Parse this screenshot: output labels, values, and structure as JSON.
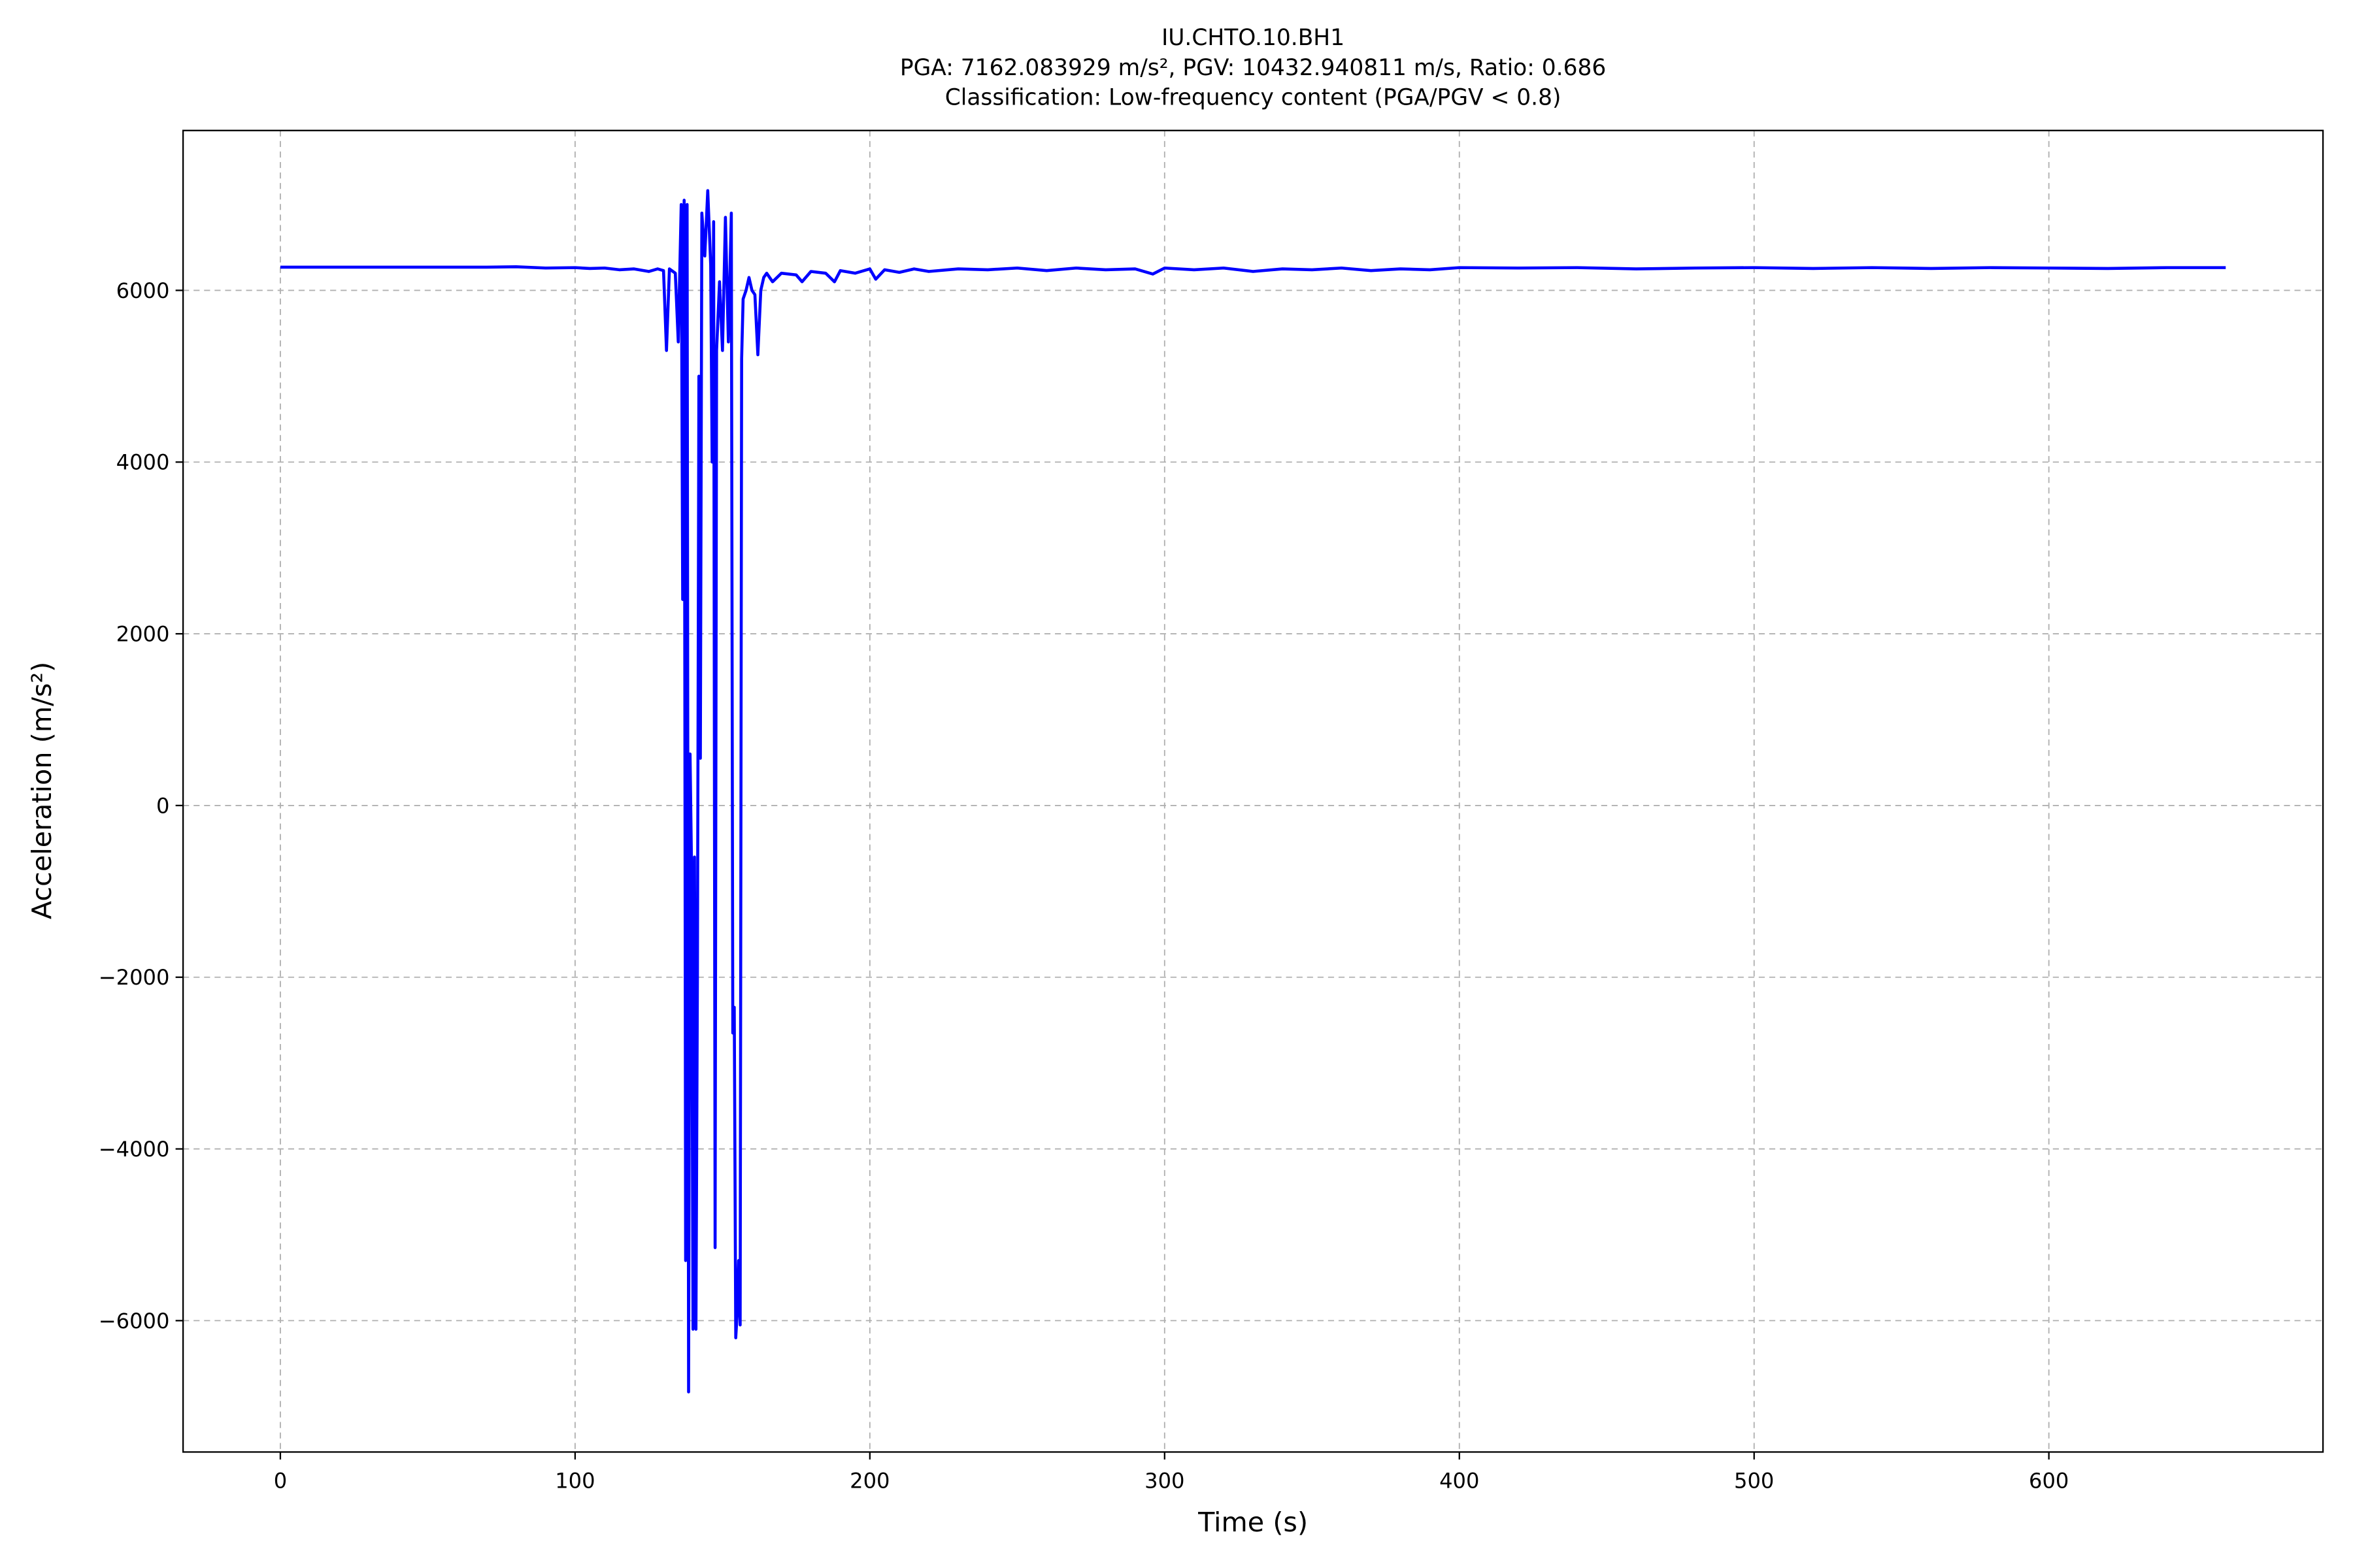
{
  "chart_data": {
    "type": "line",
    "title": [
      "IU.CHTO.10.BH1",
      "PGA: 7162.083929 m/s², PGV: 10432.940811 m/s, Ratio: 0.686",
      "Classification: Low-frequency content (PGA/PGV < 0.8)"
    ],
    "xlabel": "Time (s)",
    "ylabel": "Acceleration (m/s²)",
    "xlim": [
      -33,
      693
    ],
    "ylim": [
      -7530,
      7862
    ],
    "xticks": [
      0,
      100,
      200,
      300,
      400,
      500,
      600
    ],
    "yticks": [
      {
        "value": -6000,
        "label": "−6000"
      },
      {
        "value": -4000,
        "label": "−4000"
      },
      {
        "value": -2000,
        "label": "−2000"
      },
      0,
      2000,
      4000,
      6000
    ],
    "grid": true,
    "series": [
      {
        "color": "#0000ff",
        "x": [
          0,
          10,
          20,
          30,
          40,
          50,
          60,
          70,
          80,
          90,
          100,
          105,
          110,
          115,
          120,
          125,
          128,
          130,
          131,
          132,
          134,
          135,
          136,
          136.5,
          137,
          137.5,
          138,
          138.5,
          139,
          139.5,
          140,
          140.5,
          141,
          141.5,
          142,
          142.5,
          143,
          144,
          145,
          146,
          146.5,
          147,
          147.5,
          148,
          149,
          150,
          151,
          152,
          153,
          153.5,
          154,
          154.5,
          155,
          155.5,
          156,
          156.5,
          157,
          158,
          159,
          160,
          161,
          162,
          163,
          164,
          165,
          167,
          170,
          175,
          177,
          180,
          185,
          188,
          190,
          195,
          200,
          202,
          205,
          210,
          215,
          220,
          230,
          240,
          250,
          260,
          270,
          280,
          290,
          296,
          300,
          310,
          320,
          330,
          340,
          350,
          360,
          370,
          380,
          390,
          400,
          420,
          440,
          460,
          480,
          500,
          520,
          540,
          560,
          580,
          600,
          620,
          640,
          660
        ],
        "values": [
          6270,
          6270,
          6270,
          6270,
          6270,
          6270,
          6270,
          6270,
          6275,
          6260,
          6265,
          6255,
          6260,
          6240,
          6250,
          6220,
          6250,
          6230,
          5300,
          6250,
          6200,
          5400,
          7000,
          2400,
          7050,
          -5300,
          7000,
          -6830,
          600,
          -700,
          -6100,
          -600,
          -6100,
          -2000,
          5000,
          550,
          6900,
          6400,
          7162,
          6300,
          4000,
          6800,
          -5150,
          5300,
          6100,
          5300,
          6850,
          5400,
          6900,
          -2650,
          -2350,
          -6200,
          -5900,
          -5300,
          -6050,
          5200,
          5900,
          6000,
          6150,
          6000,
          5950,
          5250,
          6000,
          6150,
          6200,
          6100,
          6200,
          6180,
          6100,
          6220,
          6200,
          6100,
          6230,
          6200,
          6250,
          6130,
          6240,
          6210,
          6250,
          6220,
          6250,
          6240,
          6260,
          6230,
          6260,
          6240,
          6250,
          6190,
          6260,
          6240,
          6260,
          6220,
          6250,
          6240,
          6260,
          6230,
          6250,
          6240,
          6265,
          6260,
          6265,
          6250,
          6260,
          6265,
          6255,
          6265,
          6255,
          6265,
          6260,
          6255,
          6265,
          6265
        ]
      }
    ]
  }
}
